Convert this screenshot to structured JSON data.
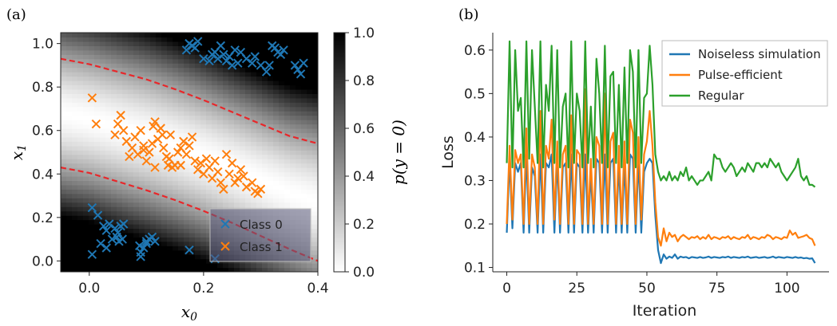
{
  "chart_data": [
    {
      "type": "scatter",
      "panel_label": "(a)",
      "xlabel": "x_0",
      "ylabel": "x_1",
      "colorbar_label": "p(y = 0)",
      "xlim": [
        -0.05,
        0.4
      ],
      "ylim": [
        -0.05,
        1.05
      ],
      "x_ticks": [
        "0.0",
        "0.2",
        "0.4"
      ],
      "y_ticks": [
        "0.0",
        "0.2",
        "0.4",
        "0.6",
        "0.8",
        "1.0"
      ],
      "colorbar_ticks": [
        "0.0",
        "0.2",
        "0.4",
        "0.6",
        "0.8",
        "1.0"
      ],
      "colorbar_range": [
        0,
        1
      ],
      "legend_position": "lower-right",
      "series": [
        {
          "name": "Class 0",
          "color": "#1f77b4",
          "marker": "x",
          "points": [
            [
              0.005,
              0.245
            ],
            [
              0.015,
              0.21
            ],
            [
              0.005,
              0.03
            ],
            [
              0.02,
              0.08
            ],
            [
              0.025,
              0.16
            ],
            [
              0.03,
              0.14
            ],
            [
              0.035,
              0.17
            ],
            [
              0.04,
              0.1
            ],
            [
              0.045,
              0.15
            ],
            [
              0.05,
              0.13
            ],
            [
              0.055,
              0.16
            ],
            [
              0.06,
              0.17
            ],
            [
              0.048,
              0.11
            ],
            [
              0.052,
              0.09
            ],
            [
              0.058,
              0.1
            ],
            [
              0.03,
              0.06
            ],
            [
              0.09,
              0.04
            ],
            [
              0.095,
              0.06
            ],
            [
              0.1,
              0.09
            ],
            [
              0.105,
              0.1
            ],
            [
              0.11,
              0.11
            ],
            [
              0.1,
              0.08
            ],
            [
              0.115,
              0.09
            ],
            [
              0.088,
              0.07
            ],
            [
              0.09,
              0.02
            ],
            [
              0.175,
              0.05
            ],
            [
              0.22,
              0.01
            ],
            [
              0.17,
              0.97
            ],
            [
              0.175,
              1.0
            ],
            [
              0.18,
              0.99
            ],
            [
              0.185,
              0.98
            ],
            [
              0.19,
              1.01
            ],
            [
              0.2,
              0.93
            ],
            [
              0.21,
              0.92
            ],
            [
              0.215,
              0.95
            ],
            [
              0.22,
              0.96
            ],
            [
              0.225,
              0.93
            ],
            [
              0.23,
              0.99
            ],
            [
              0.235,
              0.95
            ],
            [
              0.24,
              0.92
            ],
            [
              0.245,
              0.94
            ],
            [
              0.25,
              0.9
            ],
            [
              0.255,
              0.97
            ],
            [
              0.26,
              0.91
            ],
            [
              0.265,
              0.96
            ],
            [
              0.275,
              0.93
            ],
            [
              0.285,
              0.91
            ],
            [
              0.29,
              0.94
            ],
            [
              0.3,
              0.9
            ],
            [
              0.31,
              0.87
            ],
            [
              0.315,
              0.9
            ],
            [
              0.32,
              0.99
            ],
            [
              0.325,
              0.98
            ],
            [
              0.33,
              0.96
            ],
            [
              0.335,
              0.95
            ],
            [
              0.34,
              0.97
            ],
            [
              0.36,
              0.9
            ],
            [
              0.365,
              0.88
            ],
            [
              0.37,
              0.86
            ],
            [
              0.375,
              0.91
            ]
          ]
        },
        {
          "name": "Class 1",
          "color": "#ff7f0e",
          "marker": "x",
          "points": [
            [
              0.005,
              0.75
            ],
            [
              0.012,
              0.63
            ],
            [
              0.045,
              0.58
            ],
            [
              0.05,
              0.63
            ],
            [
              0.055,
              0.67
            ],
            [
              0.06,
              0.6
            ],
            [
              0.065,
              0.55
            ],
            [
              0.07,
              0.48
            ],
            [
              0.075,
              0.52
            ],
            [
              0.08,
              0.57
            ],
            [
              0.085,
              0.49
            ],
            [
              0.09,
              0.6
            ],
            [
              0.095,
              0.53
            ],
            [
              0.1,
              0.46
            ],
            [
              0.105,
              0.5
            ],
            [
              0.11,
              0.54
            ],
            [
              0.112,
              0.62
            ],
            [
              0.115,
              0.64
            ],
            [
              0.12,
              0.56
            ],
            [
              0.125,
              0.61
            ],
            [
              0.128,
              0.58
            ],
            [
              0.13,
              0.52
            ],
            [
              0.135,
              0.48
            ],
            [
              0.138,
              0.44
            ],
            [
              0.14,
              0.47
            ],
            [
              0.145,
              0.43
            ],
            [
              0.15,
              0.44
            ],
            [
              0.155,
              0.5
            ],
            [
              0.16,
              0.52
            ],
            [
              0.165,
              0.55
            ],
            [
              0.17,
              0.49
            ],
            [
              0.175,
              0.53
            ],
            [
              0.18,
              0.57
            ],
            [
              0.185,
              0.46
            ],
            [
              0.19,
              0.42
            ],
            [
              0.195,
              0.45
            ],
            [
              0.2,
              0.4
            ],
            [
              0.205,
              0.47
            ],
            [
              0.21,
              0.43
            ],
            [
              0.215,
              0.38
            ],
            [
              0.22,
              0.46
            ],
            [
              0.225,
              0.41
            ],
            [
              0.23,
              0.36
            ],
            [
              0.235,
              0.33
            ],
            [
              0.24,
              0.49
            ],
            [
              0.245,
              0.4
            ],
            [
              0.25,
              0.45
            ],
            [
              0.255,
              0.36
            ],
            [
              0.26,
              0.38
            ],
            [
              0.265,
              0.42
            ],
            [
              0.27,
              0.39
            ],
            [
              0.275,
              0.34
            ],
            [
              0.285,
              0.36
            ],
            [
              0.29,
              0.32
            ],
            [
              0.295,
              0.31
            ],
            [
              0.3,
              0.33
            ],
            [
              0.115,
              0.43
            ],
            [
              0.16,
              0.44
            ],
            [
              0.142,
              0.58
            ],
            [
              0.095,
              0.51
            ]
          ]
        }
      ],
      "decision_boundaries": [
        {
          "style": "dashed",
          "color": "#e8272a",
          "points": [
            [
              -0.05,
              0.93
            ],
            [
              0.0,
              0.905
            ],
            [
              0.05,
              0.87
            ],
            [
              0.1,
              0.835
            ],
            [
              0.15,
              0.79
            ],
            [
              0.2,
              0.74
            ],
            [
              0.25,
              0.685
            ],
            [
              0.3,
              0.63
            ],
            [
              0.35,
              0.575
            ],
            [
              0.4,
              0.54
            ]
          ]
        },
        {
          "style": "dashed",
          "color": "#e8272a",
          "points": [
            [
              -0.05,
              0.43
            ],
            [
              0.0,
              0.405
            ],
            [
              0.05,
              0.365
            ],
            [
              0.1,
              0.325
            ],
            [
              0.15,
              0.28
            ],
            [
              0.2,
              0.23
            ],
            [
              0.25,
              0.175
            ],
            [
              0.3,
              0.115
            ],
            [
              0.35,
              0.055
            ],
            [
              0.4,
              0.0
            ]
          ]
        }
      ]
    },
    {
      "type": "line",
      "panel_label": "(b)",
      "xlabel": "Iteration",
      "ylabel": "Loss",
      "xlim": [
        -5,
        115
      ],
      "ylim": [
        0.09,
        0.64
      ],
      "x_ticks": [
        "0",
        "25",
        "50",
        "75",
        "100"
      ],
      "y_ticks": [
        "0.1",
        "0.2",
        "0.3",
        "0.4",
        "0.5",
        "0.6"
      ],
      "legend_position": "top-right",
      "x": [
        0,
        1,
        2,
        3,
        4,
        5,
        6,
        7,
        8,
        9,
        10,
        11,
        12,
        13,
        14,
        15,
        16,
        17,
        18,
        19,
        20,
        21,
        22,
        23,
        24,
        25,
        26,
        27,
        28,
        29,
        30,
        31,
        32,
        33,
        34,
        35,
        36,
        37,
        38,
        39,
        40,
        41,
        42,
        43,
        44,
        45,
        46,
        47,
        48,
        49,
        50,
        51,
        52,
        53,
        54,
        55,
        56,
        57,
        58,
        59,
        60,
        61,
        62,
        63,
        64,
        65,
        66,
        67,
        68,
        69,
        70,
        71,
        72,
        73,
        74,
        75,
        76,
        77,
        78,
        79,
        80,
        81,
        82,
        83,
        84,
        85,
        86,
        87,
        88,
        89,
        90,
        91,
        92,
        93,
        94,
        95,
        96,
        97,
        98,
        99,
        100,
        101,
        102,
        103,
        104,
        105,
        106,
        107,
        108,
        109,
        110
      ],
      "series": [
        {
          "name": "Noiseless simulation",
          "color": "#1f77b4",
          "values": [
            0.18,
            0.35,
            0.19,
            0.34,
            0.32,
            0.34,
            0.18,
            0.36,
            0.18,
            0.33,
            0.31,
            0.18,
            0.36,
            0.18,
            0.34,
            0.33,
            0.36,
            0.18,
            0.35,
            0.18,
            0.33,
            0.34,
            0.18,
            0.36,
            0.18,
            0.34,
            0.33,
            0.18,
            0.36,
            0.18,
            0.32,
            0.18,
            0.35,
            0.34,
            0.18,
            0.36,
            0.18,
            0.34,
            0.35,
            0.18,
            0.34,
            0.18,
            0.34,
            0.18,
            0.36,
            0.35,
            0.18,
            0.35,
            0.18,
            0.32,
            0.34,
            0.35,
            0.34,
            0.22,
            0.14,
            0.11,
            0.13,
            0.12,
            0.125,
            0.122,
            0.13,
            0.12,
            0.125,
            0.123,
            0.124,
            0.121,
            0.124,
            0.123,
            0.122,
            0.124,
            0.122,
            0.123,
            0.125,
            0.122,
            0.124,
            0.123,
            0.122,
            0.124,
            0.123,
            0.125,
            0.122,
            0.124,
            0.123,
            0.122,
            0.124,
            0.123,
            0.125,
            0.122,
            0.123,
            0.124,
            0.122,
            0.123,
            0.124,
            0.122,
            0.123,
            0.125,
            0.122,
            0.124,
            0.123,
            0.122,
            0.124,
            0.123,
            0.122,
            0.124,
            0.122,
            0.123,
            0.121,
            0.122,
            0.12,
            0.121,
            0.11
          ]
        },
        {
          "name": "Pulse-efficient",
          "color": "#ff7f0e",
          "values": [
            0.2,
            0.38,
            0.21,
            0.37,
            0.34,
            0.36,
            0.2,
            0.42,
            0.2,
            0.36,
            0.33,
            0.2,
            0.46,
            0.2,
            0.38,
            0.35,
            0.44,
            0.21,
            0.39,
            0.2,
            0.36,
            0.38,
            0.2,
            0.45,
            0.2,
            0.37,
            0.36,
            0.2,
            0.51,
            0.2,
            0.35,
            0.2,
            0.4,
            0.38,
            0.2,
            0.5,
            0.2,
            0.39,
            0.41,
            0.2,
            0.38,
            0.2,
            0.39,
            0.2,
            0.44,
            0.41,
            0.2,
            0.4,
            0.21,
            0.36,
            0.39,
            0.46,
            0.38,
            0.25,
            0.17,
            0.15,
            0.19,
            0.16,
            0.18,
            0.17,
            0.175,
            0.16,
            0.17,
            0.175,
            0.17,
            0.165,
            0.17,
            0.168,
            0.172,
            0.165,
            0.17,
            0.166,
            0.175,
            0.165,
            0.17,
            0.168,
            0.165,
            0.17,
            0.168,
            0.172,
            0.165,
            0.17,
            0.167,
            0.165,
            0.17,
            0.168,
            0.175,
            0.165,
            0.17,
            0.168,
            0.165,
            0.17,
            0.168,
            0.175,
            0.172,
            0.165,
            0.17,
            0.168,
            0.165,
            0.17,
            0.168,
            0.185,
            0.175,
            0.18,
            0.168,
            0.17,
            0.172,
            0.175,
            0.168,
            0.165,
            0.15
          ]
        },
        {
          "name": "Regular",
          "color": "#2ca02c",
          "values": [
            0.34,
            0.62,
            0.33,
            0.6,
            0.46,
            0.49,
            0.33,
            0.62,
            0.35,
            0.6,
            0.47,
            0.34,
            0.62,
            0.33,
            0.52,
            0.46,
            0.61,
            0.34,
            0.6,
            0.33,
            0.47,
            0.5,
            0.33,
            0.62,
            0.34,
            0.5,
            0.46,
            0.33,
            0.62,
            0.34,
            0.47,
            0.33,
            0.58,
            0.5,
            0.34,
            0.61,
            0.33,
            0.54,
            0.55,
            0.34,
            0.52,
            0.33,
            0.56,
            0.34,
            0.6,
            0.55,
            0.33,
            0.6,
            0.34,
            0.49,
            0.5,
            0.61,
            0.52,
            0.36,
            0.32,
            0.3,
            0.31,
            0.3,
            0.32,
            0.3,
            0.31,
            0.3,
            0.32,
            0.31,
            0.33,
            0.3,
            0.31,
            0.3,
            0.29,
            0.3,
            0.3,
            0.31,
            0.32,
            0.3,
            0.36,
            0.35,
            0.35,
            0.33,
            0.32,
            0.33,
            0.34,
            0.33,
            0.31,
            0.32,
            0.33,
            0.32,
            0.34,
            0.33,
            0.32,
            0.34,
            0.34,
            0.33,
            0.34,
            0.33,
            0.35,
            0.34,
            0.33,
            0.34,
            0.32,
            0.31,
            0.3,
            0.31,
            0.32,
            0.33,
            0.35,
            0.31,
            0.3,
            0.31,
            0.29,
            0.29,
            0.285
          ]
        }
      ]
    }
  ]
}
